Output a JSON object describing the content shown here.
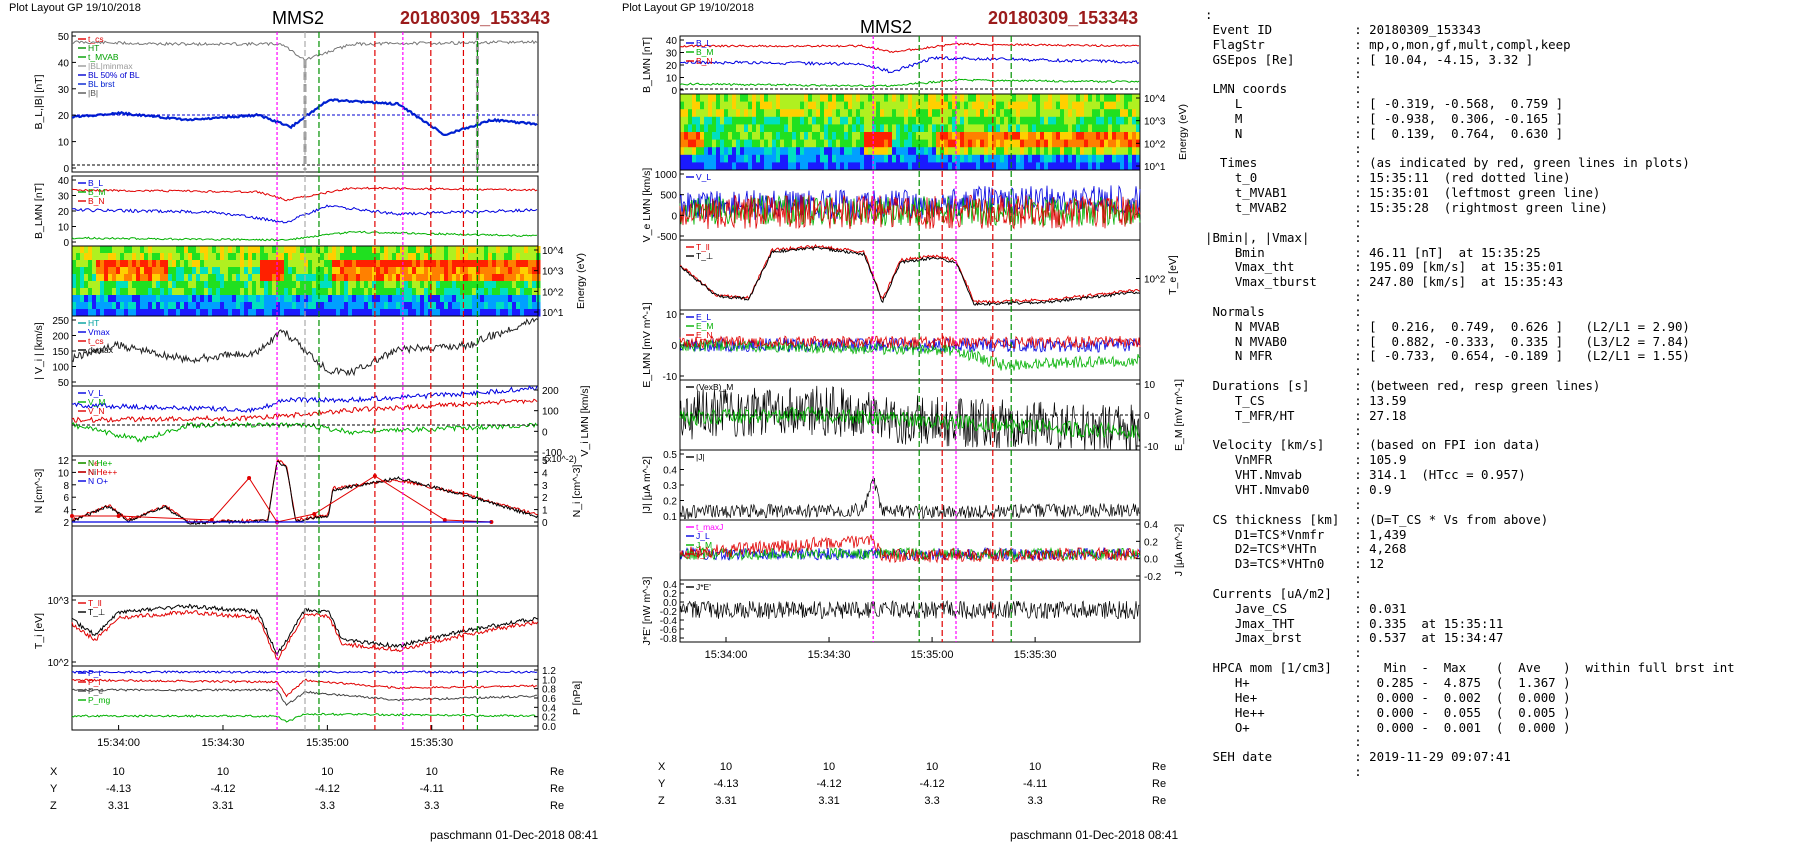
{
  "left": {
    "header": "Plot Layout GP 19/10/2018",
    "sc": "MMS2",
    "event": "20180309_153343",
    "signature": "paschmann 01-Dec-2018 08:41",
    "times": [
      "15:34:00",
      "15:34:30",
      "15:35:00",
      "15:35:30"
    ],
    "pos_labels": [
      "X",
      "Y",
      "Z"
    ],
    "pos_unit": "Re",
    "pos_values": [
      [
        "10",
        "10",
        "10",
        "10"
      ],
      [
        "-4.13",
        "-4.12",
        "-4.12",
        "-4.11"
      ],
      [
        "3.31",
        "3.31",
        "3.3",
        "3.3"
      ]
    ],
    "panels": {
      "b": {
        "ylabel": "B_L,|B| [nT]",
        "ticks": [
          "50",
          "40",
          "30",
          "20",
          "10",
          "0"
        ],
        "legend": [
          "t_cs",
          "HT",
          "t_MVAB",
          "|BL|minmax",
          "BL 50% of BL",
          "BL brst",
          "|B|"
        ]
      },
      "blmn": {
        "ylabel": "B_LMN [nT]",
        "ticks": [
          "40",
          "30",
          "20",
          "10",
          "0"
        ],
        "legend": [
          "B_L",
          "B_M",
          "B_N"
        ]
      },
      "spec": {
        "ylabel": "Energy (eV)",
        "ticks": [
          "10^4",
          "10^3",
          "10^2",
          "10^1"
        ]
      },
      "vabs": {
        "ylabel": "| V_i | [km/s]",
        "ticks": [
          "250",
          "200",
          "150",
          "100",
          "50"
        ],
        "legend": [
          "HT",
          "Vmax",
          "t_cs",
          "dvmax"
        ]
      },
      "vlmn": {
        "ylabel": "V_i LMN [km/s]",
        "ticks": [
          "200",
          "100",
          "0",
          "-100"
        ],
        "legend": [
          "V_L",
          "V_M",
          "V_N"
        ]
      },
      "n": {
        "ylabel": "N [cm^-3]",
        "ticks": [
          "12",
          "10",
          "8",
          "6",
          "4",
          "2"
        ],
        "legend": [
          "Ne",
          "Ni"
        ]
      },
      "hpca": {
        "ylabel": "N_i [cm^-3]",
        "multiplier": "(x10^-2)",
        "ticks": [
          "5",
          "4",
          "3",
          "2",
          "1",
          "0"
        ],
        "legend": [
          "N He+",
          "N He++",
          "N O+"
        ]
      },
      "ti": {
        "ylabel": "T_i [eV]",
        "ticks": [
          "10^3",
          "10^2"
        ],
        "legend": [
          "T_ll",
          "T_⊥"
        ]
      },
      "p": {
        "ylabel": "P [nPa]",
        "ticks": [
          "1.2",
          "1.0",
          "0.8",
          "0.6",
          "0.4",
          "0.2",
          "0.0"
        ],
        "legend": [
          "P_t",
          "P_i",
          "P_e",
          "P_mg"
        ]
      }
    }
  },
  "mid": {
    "header": "Plot Layout GP 19/10/2018",
    "sc": "MMS2",
    "event": "20180309_153343",
    "signature": "paschmann 01-Dec-2018 08:41",
    "times": [
      "15:34:00",
      "15:34:30",
      "15:35:00",
      "15:35:30"
    ],
    "pos_labels": [
      "X",
      "Y",
      "Z"
    ],
    "pos_unit": "Re",
    "pos_values": [
      [
        "10",
        "10",
        "10",
        "10"
      ],
      [
        "-4.13",
        "-4.12",
        "-4.12",
        "-4.11"
      ],
      [
        "3.31",
        "3.31",
        "3.3",
        "3.3"
      ]
    ],
    "panels": {
      "blmn": {
        "ylabel": "B_LMN [nT]",
        "ticks": [
          "40",
          "30",
          "20",
          "10",
          "0"
        ],
        "legend": [
          "B_L",
          "B_M",
          "B_N"
        ]
      },
      "spec": {
        "ylabel": "Energy (eV)",
        "ticks": [
          "10^4",
          "10^3",
          "10^2",
          "10^1"
        ]
      },
      "ve": {
        "ylabel": "V_e LMN [km/s]",
        "ticks": [
          "1000",
          "500",
          "0",
          "-500"
        ],
        "legend": [
          "V_L"
        ]
      },
      "te": {
        "ylabel": "T_e [eV]",
        "ticks": [
          "10^2"
        ],
        "legend": [
          "T_ll",
          "T_⊥"
        ]
      },
      "e": {
        "ylabel": "E_LMN [mV m^-1]",
        "ticks": [
          "10",
          "0",
          "-10"
        ],
        "legend": [
          "E_L",
          "E_M",
          "E_N"
        ]
      },
      "em": {
        "ylabel": "E_M [mV m^-1]",
        "ticks": [
          "10",
          "0",
          "-10"
        ],
        "legend": [
          "(VexB)_M"
        ]
      },
      "j": {
        "ylabel": "|J| [μA m^-2]",
        "ticks": [
          "0.5",
          "0.4",
          "0.3",
          "0.2",
          "0.1"
        ],
        "legend": [
          "|J|"
        ]
      },
      "jlmn": {
        "ylabel": "J [μA m^-2]",
        "ticks": [
          "0.4",
          "0.2",
          "0.0",
          "-0.2"
        ],
        "legend": [
          "t_maxJ",
          "J_L",
          "J_M",
          "J_N"
        ]
      },
      "je": {
        "ylabel": "J*E' [nW m^-3]",
        "ticks": [
          "0.4",
          "0.2",
          "0.0",
          "-0.2",
          "-0.4",
          "-0.6",
          "-0.8"
        ],
        "legend": [
          "J*E'"
        ]
      }
    }
  },
  "info_lines": [
    ":",
    " Event ID           : 20180309_153343",
    " FlagStr            : mp,o,mon,gf,mult,compl,keep",
    " GSEpos [Re]        : [ 10.04, -4.15, 3.32 ]",
    "                    :",
    " LMN coords         :",
    "    L               : [ -0.319, -0.568,  0.759 ]",
    "    M               : [ -0.938,  0.306, -0.165 ]",
    "    N               : [  0.139,  0.764,  0.630 ]",
    "                    :",
    "  Times             : (as indicated by red, green lines in plots)",
    "    t_0             : 15:35:11  (red dotted line)",
    "    t_MVAB1         : 15:35:01  (leftmost green line)",
    "    t_MVAB2         : 15:35:28  (rightmost green line)",
    "                    :",
    "|Bmin|, |Vmax|      :",
    "    Bmin            : 46.11 [nT]  at 15:35:25",
    "    Vmax_tht        : 195.09 [km/s]  at 15:35:01",
    "    Vmax_tburst     : 247.80 [km/s]  at 15:35:43",
    "                    :",
    " Normals            :",
    "    N MVAB          : [  0.216,  0.749,  0.626 ]   (L2/L1 = 2.90)",
    "    N MVAB0         : [  0.882, -0.333,  0.335 ]   (L3/L2 = 7.84)",
    "    N MFR           : [ -0.733,  0.654, -0.189 ]   (L2/L1 = 1.55)",
    "                    :",
    " Durations [s]      : (between red, resp green lines)",
    "    T_CS            : 13.59",
    "    T_MFR/HT        : 27.18",
    "                    :",
    " Velocity [km/s]    : (based on FPI ion data)",
    "    VnMFR           : 105.9",
    "    VHT.Nmvab       : 314.1  (HTcc = 0.957)",
    "    VHT.Nmvab0      : 0.9",
    "                    :",
    " CS thickness [km]  : (D=T_CS * Vs from above)",
    "    D1=TCS*Vnmfr    : 1,439",
    "    D2=TCS*VHTn     : 4,268",
    "    D3=TCS*VHTn0    : 12",
    "                    :",
    " Currents [uA/m2]   :",
    "    Jave_CS         : 0.031",
    "    Jmax_THT        : 0.335  at 15:35:11",
    "    Jmax_brst       : 0.537  at 15:34:47",
    "                    :",
    " HPCA mom [1/cm3]   :   Min  -  Max    (  Ave   )  within full brst int",
    "    H+              :  0.285 -  4.875  (  1.367 )",
    "    He+             :  0.000 -  0.002  (  0.000 )",
    "    He++            :  0.000 -  0.055  (  0.005 )",
    "    O+              :  0.000 -  0.001  (  0.000 )",
    "                    :",
    " SEH date           : 2019-11-29 09:07:41",
    "                    :"
  ],
  "chart_data": [
    {
      "type": "line",
      "title": "MMS2 20180309_153343 (Plot Layout GP 19/10/2018)",
      "x_ticks": [
        "15:34:00",
        "15:34:30",
        "15:35:00",
        "15:35:30"
      ],
      "markers": {
        "t_0": "15:35:11",
        "t_MVAB1": "15:35:01",
        "t_MVAB2": "15:35:28"
      },
      "panels": [
        {
          "name": "B_L,|B|",
          "ylabel": "B_L,|B| [nT]",
          "ylim": [
            0,
            55
          ],
          "series": [
            {
              "name": "|B|",
              "x": [
                "15:33:45",
                "15:34:00",
                "15:34:30",
                "15:34:55",
                "15:35:10",
                "15:35:30",
                "15:35:55"
              ],
              "values": [
                50,
                48,
                48,
                49,
                52,
                49,
                50
              ]
            },
            {
              "name": "B_L brst",
              "x": [
                "15:33:45",
                "15:34:00",
                "15:34:30",
                "15:34:45",
                "15:35:00",
                "15:35:15",
                "15:35:25",
                "15:35:40",
                "15:35:55"
              ],
              "values": [
                22,
                21,
                20,
                21,
                26,
                19,
                12,
                17,
                18
              ]
            }
          ]
        },
        {
          "name": "B_LMN",
          "ylabel": "B_LMN [nT]",
          "ylim": [
            0,
            45
          ],
          "series": [
            {
              "name": "B_L",
              "values": [
                40,
                40,
                39,
                37,
                40,
                41,
                40
              ]
            },
            {
              "name": "B_M",
              "values": [
                20,
                21,
                21,
                14,
                22,
                17,
                20
              ]
            },
            {
              "name": "B_N",
              "values": [
                3,
                4,
                3,
                1,
                5,
                4,
                5
              ]
            }
          ]
        },
        {
          "name": "|V_i|",
          "ylabel": "| V_i | [km/s]",
          "ylim": [
            0,
            250
          ],
          "series": [
            {
              "name": "|V_i|",
              "x": [
                "15:33:45",
                "15:34:00",
                "15:34:15",
                "15:34:30",
                "15:34:45",
                "15:35:00",
                "15:35:15",
                "15:35:30",
                "15:35:45",
                "15:35:55"
              ],
              "values": [
                80,
                110,
                90,
                70,
                180,
                60,
                140,
                180,
                190,
                230
              ]
            }
          ]
        },
        {
          "name": "N",
          "ylabel": "N [cm^-3]",
          "ylim": [
            0,
            13
          ],
          "series": [
            {
              "name": "Ni",
              "x": [
                "15:33:45",
                "15:34:00",
                "15:34:15",
                "15:34:30",
                "15:34:45",
                "15:34:48",
                "15:35:00",
                "15:35:20",
                "15:35:40",
                "15:35:55"
              ],
              "values": [
                2,
                4,
                2.5,
                2,
                2,
                12,
                2,
                8,
                5,
                3
              ]
            }
          ]
        },
        {
          "name": "N_i HPCA",
          "ylabel": "N_i [cm^-3] (x10^-2)",
          "ylim": [
            0,
            5
          ],
          "series": [
            {
              "name": "N He++",
              "x": [
                "15:33:45",
                "15:34:00",
                "15:34:30",
                "15:34:42",
                "15:34:48",
                "15:35:00",
                "15:35:20",
                "15:35:40",
                "15:35:50"
              ],
              "values": [
                0.2,
                0.2,
                0.1,
                3,
                0.1,
                0.8,
                5,
                1,
                0.2
              ]
            }
          ]
        },
        {
          "name": "P",
          "ylabel": "P [nPa]",
          "ylim": [
            0,
            1.2
          ],
          "series": [
            {
              "name": "P_t",
              "values": [
                1.1,
                1.1,
                1.1,
                1.05,
                1.1,
                1.1,
                1.1
              ]
            },
            {
              "name": "P_i",
              "values": [
                0.9,
                0.9,
                0.85,
                0.6,
                0.9,
                0.8,
                0.8
              ]
            },
            {
              "name": "P_mg",
              "values": [
                0.3,
                0.3,
                0.3,
                0.2,
                0.3,
                0.3,
                0.3
              ]
            }
          ]
        }
      ]
    }
  ]
}
